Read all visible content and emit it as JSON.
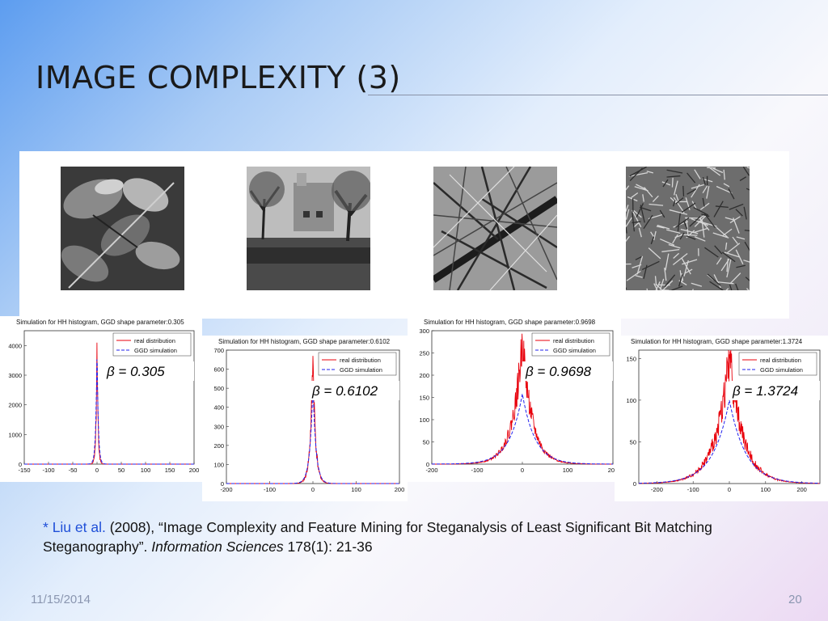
{
  "slide": {
    "title": "IMAGE COMPLEXITY (3)",
    "date": "11/15/2014",
    "page_number": "20"
  },
  "images": [
    {
      "icon": "leaves-photo"
    },
    {
      "icon": "trees-building-photo"
    },
    {
      "icon": "branches-photo"
    },
    {
      "icon": "grass-photo"
    }
  ],
  "footnote": {
    "asterisk": "*",
    "authors": "Liu et al.",
    "text_main": " (2008), “Image Complexity and Feature Mining for Steganalysis of Least Significant Bit Matching Steganography”. ",
    "journal": "Information Sciences",
    "text_tail": " 178(1): 21-36"
  },
  "chart_data": [
    {
      "type": "line",
      "title": "Simulation for HH histogram, GGD shape parameter:0.305",
      "annotation": "β = 0.305",
      "xlim": [
        -150,
        200
      ],
      "ylim": [
        0,
        4500
      ],
      "xticks": [
        "-150",
        "-100",
        "-50",
        "0",
        "50",
        "100",
        "150",
        "200"
      ],
      "yticks": [
        "0",
        "1000",
        "2000",
        "3000",
        "4000"
      ],
      "series": [
        {
          "name": "real distribution",
          "peak": 4100,
          "halfwidth": 2,
          "color": "#e8000b"
        },
        {
          "name": "GGD simulation",
          "peak": 4100,
          "halfwidth": 2.5,
          "color": "#2222ee"
        }
      ]
    },
    {
      "type": "line",
      "title": "Simulation for HH histogram, GGD shape parameter:0.6102",
      "annotation": "β = 0.6102",
      "xlim": [
        -200,
        200
      ],
      "ylim": [
        0,
        700
      ],
      "xticks": [
        "-200",
        "-100",
        "0",
        "100",
        "200"
      ],
      "yticks": [
        "0",
        "100",
        "200",
        "300",
        "400",
        "500",
        "600",
        "700"
      ],
      "series": [
        {
          "name": "real distribution",
          "peak": 670,
          "halfwidth": 6,
          "color": "#e8000b"
        },
        {
          "name": "GGD simulation",
          "peak": 520,
          "halfwidth": 7,
          "color": "#2222ee"
        }
      ]
    },
    {
      "type": "line",
      "title": "Simulation for HH histogram, GGD shape parameter:0.9698",
      "annotation": "β = 0.9698",
      "xlim": [
        -200,
        200
      ],
      "ylim": [
        0,
        300
      ],
      "xticks": [
        "-200",
        "-100",
        "0",
        "100",
        "200"
      ],
      "yticks": [
        "0",
        "50",
        "100",
        "150",
        "200",
        "250",
        "300"
      ],
      "series": [
        {
          "name": "real distribution",
          "peak": 275,
          "halfwidth": 22,
          "color": "#e8000b"
        },
        {
          "name": "GGD simulation",
          "peak": 158,
          "halfwidth": 28,
          "color": "#2222ee"
        }
      ]
    },
    {
      "type": "line",
      "title": "Simulation for HH histogram, GGD shape parameter:1.3724",
      "annotation": "β = 1.3724",
      "xlim": [
        -250,
        250
      ],
      "ylim": [
        0,
        160
      ],
      "xticks": [
        "-200",
        "-100",
        "0",
        "100",
        "200"
      ],
      "yticks": [
        "0",
        "50",
        "100",
        "150"
      ],
      "series": [
        {
          "name": "real distribution",
          "peak": 155,
          "halfwidth": 38,
          "color": "#e8000b"
        },
        {
          "name": "GGD simulation",
          "peak": 100,
          "halfwidth": 45,
          "color": "#2222ee"
        }
      ]
    }
  ]
}
